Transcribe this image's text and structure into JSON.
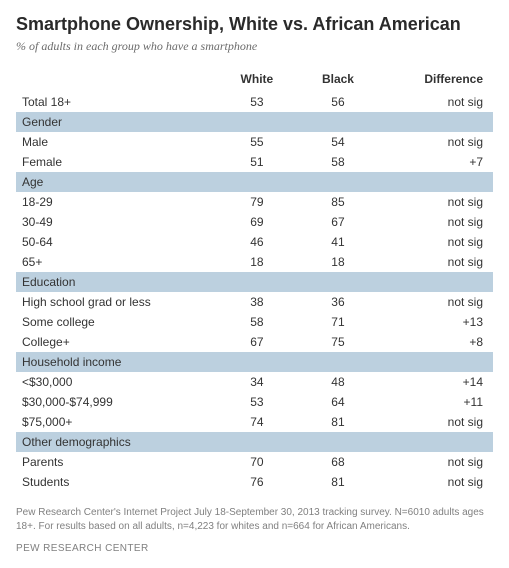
{
  "title": "Smartphone Ownership, White vs. African American",
  "subtitle": "% of adults in each group who have a smartphone",
  "columns": {
    "label": "",
    "white": "White",
    "black": "Black",
    "diff": "Difference"
  },
  "total_row": {
    "label": "Total 18+",
    "white": "53",
    "black": "56",
    "diff": "not sig"
  },
  "groups": [
    {
      "name": "Gender",
      "rows": [
        {
          "label": "Male",
          "white": "55",
          "black": "54",
          "diff": "not sig"
        },
        {
          "label": "Female",
          "white": "51",
          "black": "58",
          "diff": "+7"
        }
      ]
    },
    {
      "name": "Age",
      "rows": [
        {
          "label": "18-29",
          "white": "79",
          "black": "85",
          "diff": "not sig"
        },
        {
          "label": "30-49",
          "white": "69",
          "black": "67",
          "diff": "not sig"
        },
        {
          "label": "50-64",
          "white": "46",
          "black": "41",
          "diff": "not sig"
        },
        {
          "label": "65+",
          "white": "18",
          "black": "18",
          "diff": "not sig"
        }
      ]
    },
    {
      "name": "Education",
      "rows": [
        {
          "label": "High school grad or less",
          "white": "38",
          "black": "36",
          "diff": "not sig"
        },
        {
          "label": "Some college",
          "white": "58",
          "black": "71",
          "diff": "+13"
        },
        {
          "label": "College+",
          "white": "67",
          "black": "75",
          "diff": "+8"
        }
      ]
    },
    {
      "name": "Household income",
      "rows": [
        {
          "label": "<$30,000",
          "white": "34",
          "black": "48",
          "diff": "+14"
        },
        {
          "label": "$30,000-$74,999",
          "white": "53",
          "black": "64",
          "diff": "+11"
        },
        {
          "label": "$75,000+",
          "white": "74",
          "black": "81",
          "diff": "not sig"
        }
      ]
    },
    {
      "name": "Other demographics",
      "rows": [
        {
          "label": "Parents",
          "white": "70",
          "black": "68",
          "diff": "not sig"
        },
        {
          "label": "Students",
          "white": "76",
          "black": "81",
          "diff": "not sig"
        }
      ]
    }
  ],
  "footnote": "Pew Research Center's Internet Project July 18-September 30, 2013 tracking survey. N=6010 adults ages 18+. For results based on all adults, n=4,223 for whites and n=664 for African Americans.",
  "source": "PEW RESEARCH CENTER",
  "style": {
    "group_bg": "#bcd0df",
    "text_color": "#333333",
    "muted_color": "#808080",
    "background": "#ffffff"
  }
}
